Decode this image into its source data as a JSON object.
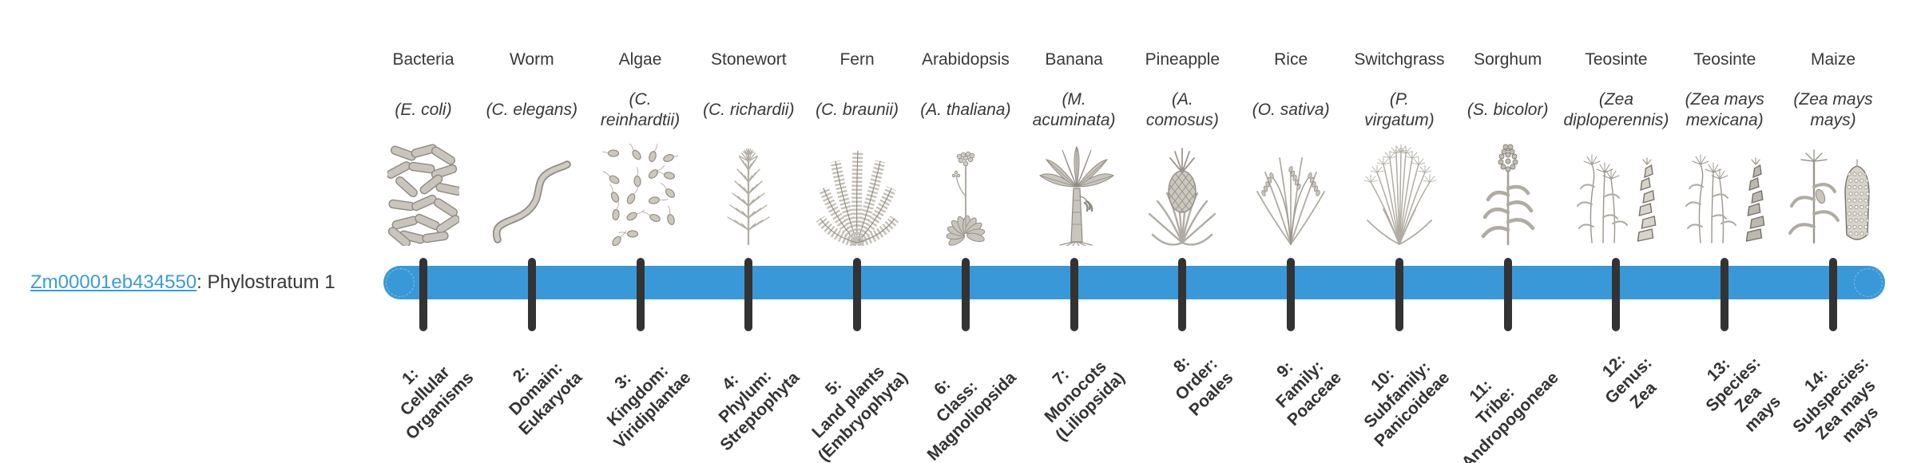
{
  "gene_label": {
    "id": "Zm00001eb434550",
    "suffix": ": Phylostratum 1"
  },
  "timeline": {
    "bar_color": "#3998d8",
    "tick_color": "#333333",
    "link_color": "#3b9bd9",
    "text_color": "#383838",
    "tick_label_color": "#333333"
  },
  "organisms": [
    {
      "name": "Bacteria",
      "species": "(E. coli)",
      "icon": "bacteria",
      "phylostratum": "1:\nCellular\nOrganisms"
    },
    {
      "name": "Worm",
      "species": "(C. elegans)",
      "icon": "worm",
      "phylostratum": "2:\nDomain:\nEukaryota"
    },
    {
      "name": "Algae",
      "species": "(C.\nreinhardtii)",
      "icon": "algae",
      "phylostratum": "3:\nKingdom:\nViridiplantae"
    },
    {
      "name": "Stonewort",
      "species": "(C. richardii)",
      "icon": "stonewort",
      "phylostratum": "4:\nPhylum:\nStreptophyta"
    },
    {
      "name": "Fern",
      "species": "(C. braunii)",
      "icon": "fern",
      "phylostratum": "5:\nLand plants\n(Embryophyta)"
    },
    {
      "name": "Arabidopsis",
      "species": "(A. thaliana)",
      "icon": "arabidopsis",
      "phylostratum": "6:\nClass:\nMagnoliopsida"
    },
    {
      "name": "Banana",
      "species": "(M.\nacuminata)",
      "icon": "banana",
      "phylostratum": "7:\nMonocots\n(Liliopsida)"
    },
    {
      "name": "Pineapple",
      "species": "(A.\ncomosus)",
      "icon": "pineapple",
      "phylostratum": "8:\nOrder:\nPoales"
    },
    {
      "name": "Rice",
      "species": "(O. sativa)",
      "icon": "rice",
      "phylostratum": "9:\nFamily:\nPoaceae"
    },
    {
      "name": "Switchgrass",
      "species": "(P.\nvirgatum)",
      "icon": "switchgrass",
      "phylostratum": "10:\nSubfamily:\nPanicoideae"
    },
    {
      "name": "Sorghum",
      "species": "(S. bicolor)",
      "icon": "sorghum",
      "phylostratum": "11:\nTribe:\nAndropogoneae"
    },
    {
      "name": "Teosinte",
      "species": "(Zea\ndiploperennis)",
      "icon": "teosinte-diploperennis",
      "phylostratum": "12:\nGenus:\nZea"
    },
    {
      "name": "Teosinte",
      "species": "(Zea mays\nmexicana)",
      "icon": "teosinte-mexicana",
      "phylostratum": "13:\nSpecies:\nZea\nmays"
    },
    {
      "name": "Maize",
      "species": "(Zea mays\nmays)",
      "icon": "maize",
      "phylostratum": "14:\nSubspecies:\nZea mays\nmays"
    }
  ]
}
